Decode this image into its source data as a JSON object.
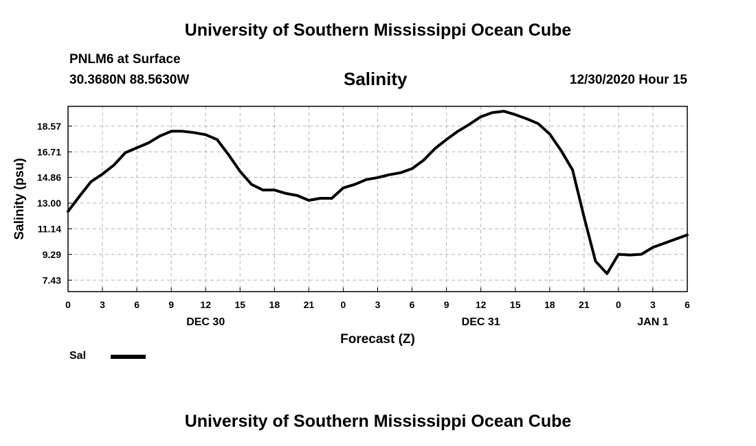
{
  "header": {
    "title": "University of Southern Mississippi Ocean Cube",
    "station": "PNLM6 at Surface",
    "coordinates": "30.3680N 88.5630W",
    "run_time": "12/30/2020 Hour 15"
  },
  "footer": {
    "title": "University of Southern Mississippi Ocean Cube"
  },
  "legend": {
    "label": "Sal",
    "color": "#000000"
  },
  "chart_data": {
    "type": "line",
    "title": "Salinity",
    "xlabel": "Forecast (Z)",
    "ylabel": "Salinity (psu)",
    "xlim": [
      0,
      54
    ],
    "ylim": [
      6.6,
      20.0
    ],
    "x_tick_values": [
      0,
      3,
      6,
      9,
      12,
      15,
      18,
      21,
      24,
      27,
      30,
      33,
      36,
      39,
      42,
      45,
      48,
      51,
      54
    ],
    "x_tick_labels": [
      "0",
      "3",
      "6",
      "9",
      "12",
      "15",
      "18",
      "21",
      "0",
      "3",
      "6",
      "9",
      "12",
      "15",
      "18",
      "21",
      "0",
      "3",
      "6"
    ],
    "y_ticks": [
      7.43,
      9.29,
      11.14,
      13.0,
      14.86,
      16.71,
      18.57
    ],
    "y_tick_labels": [
      "7.43",
      "9.29",
      "11.14",
      "13.00",
      "14.86",
      "16.71",
      "18.57"
    ],
    "date_labels": [
      {
        "label": "DEC 30",
        "x": 12
      },
      {
        "label": "DEC 31",
        "x": 36
      },
      {
        "label": "JAN 1",
        "x": 51
      }
    ],
    "grid": true,
    "legend_position": "bottom-left",
    "series": [
      {
        "name": "Sal",
        "color": "#000000",
        "x": [
          0,
          1,
          2,
          3,
          4,
          5,
          6,
          7,
          8,
          9,
          10,
          11,
          12,
          13,
          14,
          15,
          16,
          17,
          18,
          19,
          20,
          21,
          22,
          23,
          24,
          25,
          26,
          27,
          28,
          29,
          30,
          31,
          32,
          33,
          34,
          35,
          36,
          37,
          38,
          39,
          40,
          41,
          42,
          43,
          44,
          45,
          46,
          47,
          48,
          49,
          50,
          51,
          52,
          53,
          54
        ],
        "y": [
          12.4,
          13.5,
          14.55,
          15.1,
          15.75,
          16.65,
          17.0,
          17.35,
          17.85,
          18.2,
          18.2,
          18.1,
          17.95,
          17.6,
          16.5,
          15.3,
          14.35,
          13.95,
          13.95,
          13.7,
          13.55,
          13.2,
          13.35,
          13.35,
          14.1,
          14.35,
          14.7,
          14.85,
          15.05,
          15.2,
          15.5,
          16.1,
          16.95,
          17.6,
          18.2,
          18.7,
          19.25,
          19.55,
          19.65,
          19.4,
          19.1,
          18.75,
          18.0,
          16.8,
          15.4,
          12.0,
          8.8,
          7.9,
          9.3,
          9.25,
          9.3,
          9.8,
          10.1,
          10.4,
          10.7
        ]
      }
    ]
  }
}
